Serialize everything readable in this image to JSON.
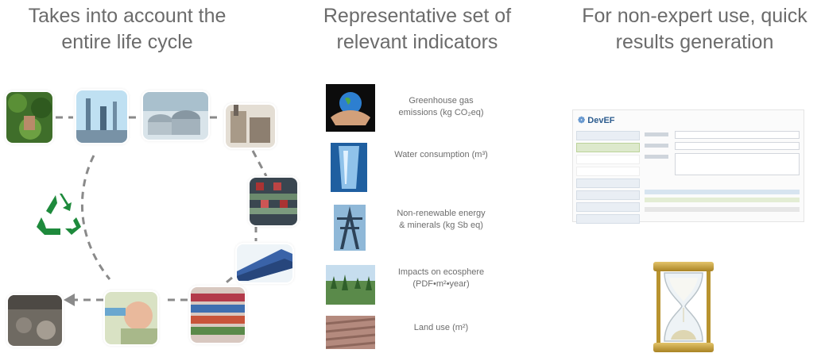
{
  "columns": [
    {
      "heading_line1": "Takes into account the",
      "heading_line2": "entire life cycle"
    },
    {
      "heading_line1": "Representative set of",
      "heading_line2": "relevant indicators"
    },
    {
      "heading_line1": "For non-expert use, quick",
      "heading_line2": "results generation"
    }
  ],
  "indicators": [
    {
      "line1": "Greenhouse gas",
      "line2": "emissions (kg CO₂eq)",
      "icon": "earth-in-hands-photo"
    },
    {
      "line1": "Water consumption (m³)",
      "line2": "",
      "icon": "water-glass-photo"
    },
    {
      "line1": "Non-renewable energy",
      "line2": "& minerals (kg Sb eq)",
      "icon": "power-pylon-photo"
    },
    {
      "line1": "Impacts on ecosphere",
      "line2": "(PDF•m²•year)",
      "icon": "forest-landscape-photo"
    },
    {
      "line1": "Land use (m²)",
      "line2": "",
      "icon": "cleared-land-photo"
    }
  ],
  "app": {
    "logo": "DevEF",
    "icon": "app-screenshot"
  },
  "colors": {
    "dashes": "#8a8a8a",
    "recycle": "#1e8a3c",
    "hourglass_frame": "#c9a84a"
  }
}
